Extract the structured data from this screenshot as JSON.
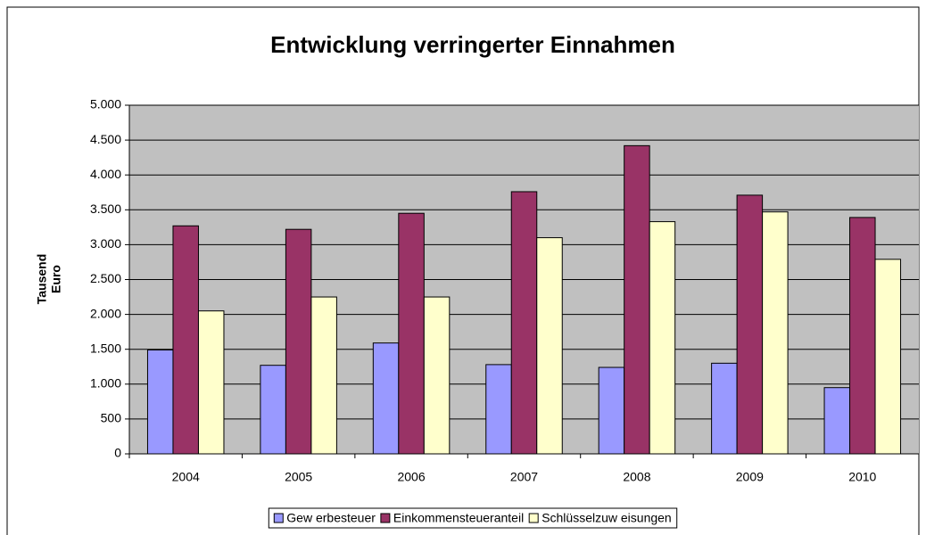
{
  "chart_data": {
    "type": "bar",
    "title": "Entwicklung verringerter Einnahmen",
    "y_label": [
      "Tausend",
      "Euro"
    ],
    "categories": [
      "2004",
      "2005",
      "2006",
      "2007",
      "2008",
      "2009",
      "2010"
    ],
    "series": [
      {
        "name": "Gew erbesteuer",
        "color": "#9999ff",
        "values": [
          1490,
          1270,
          1590,
          1280,
          1240,
          1300,
          950
        ]
      },
      {
        "name": "Einkommensteueranteil",
        "color": "#993366",
        "values": [
          3270,
          3220,
          3450,
          3760,
          4420,
          3710,
          3390
        ]
      },
      {
        "name": "Schlüsselzuw eisungen",
        "color": "#ffffcc",
        "values": [
          2050,
          2250,
          2250,
          3100,
          3330,
          3470,
          2790
        ]
      }
    ],
    "ylim": [
      0,
      5000
    ],
    "yticks": [
      0,
      500,
      {
        "value": 1000,
        "label": "1.000"
      },
      {
        "value": 1500,
        "label": "1.500"
      },
      {
        "value": 2000,
        "label": "2.000"
      },
      {
        "value": 2500,
        "label": "2.500"
      },
      {
        "value": 3000,
        "label": "3.000"
      },
      {
        "value": 3500,
        "label": "3.500"
      },
      {
        "value": 4000,
        "label": "4.000"
      },
      {
        "value": 4500,
        "label": "4.500"
      },
      {
        "value": 5000,
        "label": "5.000"
      }
    ],
    "grid": true,
    "legend": "bottom"
  }
}
